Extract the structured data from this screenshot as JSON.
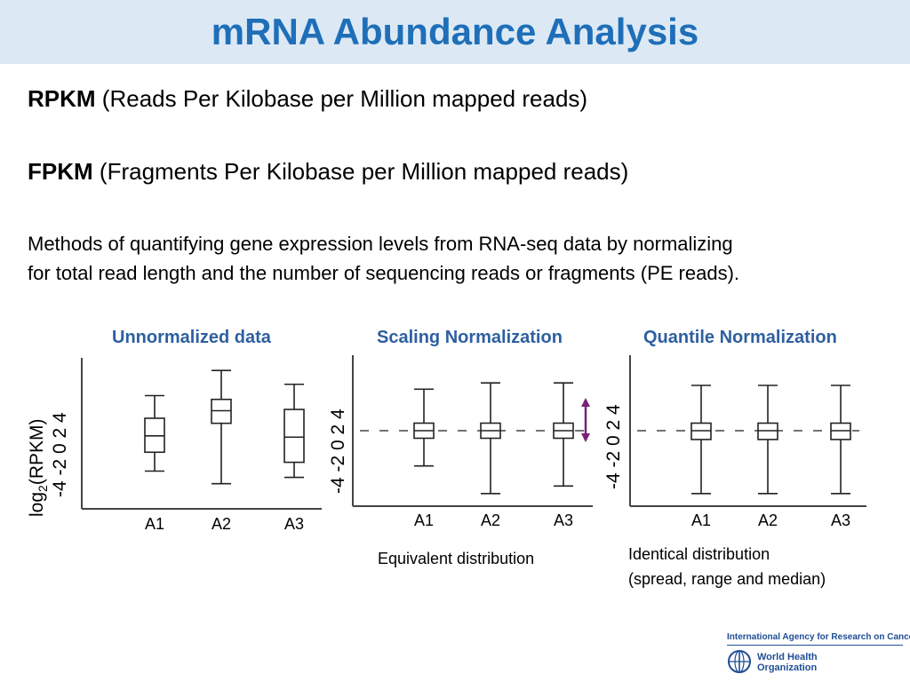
{
  "title": "mRNA Abundance Analysis",
  "definitions": [
    {
      "term": "RPKM",
      "expansion": "(Reads Per Kilobase per Million mapped reads)"
    },
    {
      "term": "FPKM",
      "expansion": "(Fragments Per Kilobase per Million mapped reads)"
    }
  ],
  "description_lines": [
    "Methods of quantifying gene expression levels from RNA-seq data by normalizing",
    "for total read length and the number of sequencing reads or fragments (PE reads)."
  ],
  "y_axis": {
    "label_prefix": "log",
    "label_sub": "2",
    "label_suffix": "(RPKM)",
    "ticks": "-4 -2  0  2  4"
  },
  "chart_data": [
    {
      "type": "box",
      "title": "Unnormalized data",
      "categories": [
        "A1",
        "A2",
        "A3"
      ],
      "ylim": [
        -6,
        6
      ],
      "boxes": [
        {
          "min": -3.0,
          "q1": -1.5,
          "median": -0.2,
          "q3": 1.2,
          "max": 3.0
        },
        {
          "min": -4.0,
          "q1": 0.8,
          "median": 1.8,
          "q3": 2.7,
          "max": 5.0
        },
        {
          "min": -3.5,
          "q1": -2.3,
          "median": -0.3,
          "q3": 1.9,
          "max": 3.9
        }
      ],
      "caption": []
    },
    {
      "type": "box",
      "title": "Scaling Normalization",
      "categories": [
        "A1",
        "A2",
        "A3"
      ],
      "ylim": [
        -6,
        6
      ],
      "boxes": [
        {
          "min": -2.8,
          "q1": -0.6,
          "median": 0.0,
          "q3": 0.6,
          "max": 3.3
        },
        {
          "min": -5.0,
          "q1": -0.6,
          "median": 0.0,
          "q3": 0.6,
          "max": 3.8
        },
        {
          "min": -4.4,
          "q1": -0.6,
          "median": 0.0,
          "q3": 0.6,
          "max": 3.8
        }
      ],
      "reference_line": 0,
      "caption": [
        "Equivalent distribution"
      ]
    },
    {
      "type": "box",
      "title": "Quantile Normalization",
      "categories": [
        "A1",
        "A2",
        "A3"
      ],
      "ylim": [
        -6,
        6
      ],
      "boxes": [
        {
          "min": -5.0,
          "q1": -0.7,
          "median": 0.0,
          "q3": 0.6,
          "max": 3.6
        },
        {
          "min": -5.0,
          "q1": -0.7,
          "median": 0.0,
          "q3": 0.6,
          "max": 3.6
        },
        {
          "min": -5.0,
          "q1": -0.7,
          "median": 0.0,
          "q3": 0.6,
          "max": 3.6
        }
      ],
      "reference_line": 0,
      "caption": [
        "Identical distribution",
        "(spread, range and median)"
      ]
    }
  ],
  "logos": {
    "iarc": "International Agency for Research on Cancer",
    "who_line1": "World Health",
    "who_line2": "Organization"
  }
}
